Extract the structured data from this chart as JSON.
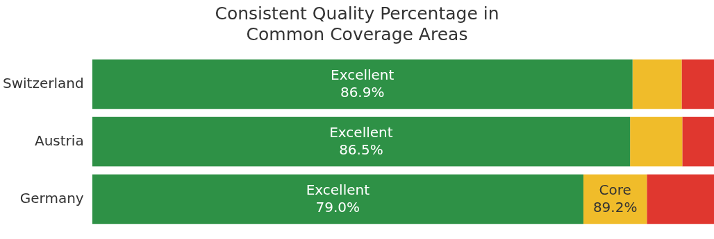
{
  "chart_data": {
    "type": "bar",
    "orientation": "horizontal",
    "stacked": true,
    "title": "Consistent Quality Percentage in\nCommon Coverage Areas",
    "categories": [
      "Switzerland",
      "Austria",
      "Germany"
    ],
    "series": [
      {
        "name": "Excellent",
        "color": "#2e9146",
        "values": [
          86.9,
          86.5,
          79.0
        ],
        "value_labels": [
          "86.9%",
          "86.5%",
          "79.0%"
        ]
      },
      {
        "name": "Core",
        "color": "#f0bc2a",
        "values": [
          7.9,
          8.4,
          10.2
        ]
      },
      {
        "color": "#e0372f",
        "values": [
          5.2,
          5.1,
          10.8
        ]
      }
    ],
    "annotations": [
      {
        "text": "89.2%",
        "x": 89.2,
        "y": "Germany"
      }
    ],
    "xlim": [
      0,
      100
    ],
    "tick_labels": "y",
    "legend": false
  }
}
